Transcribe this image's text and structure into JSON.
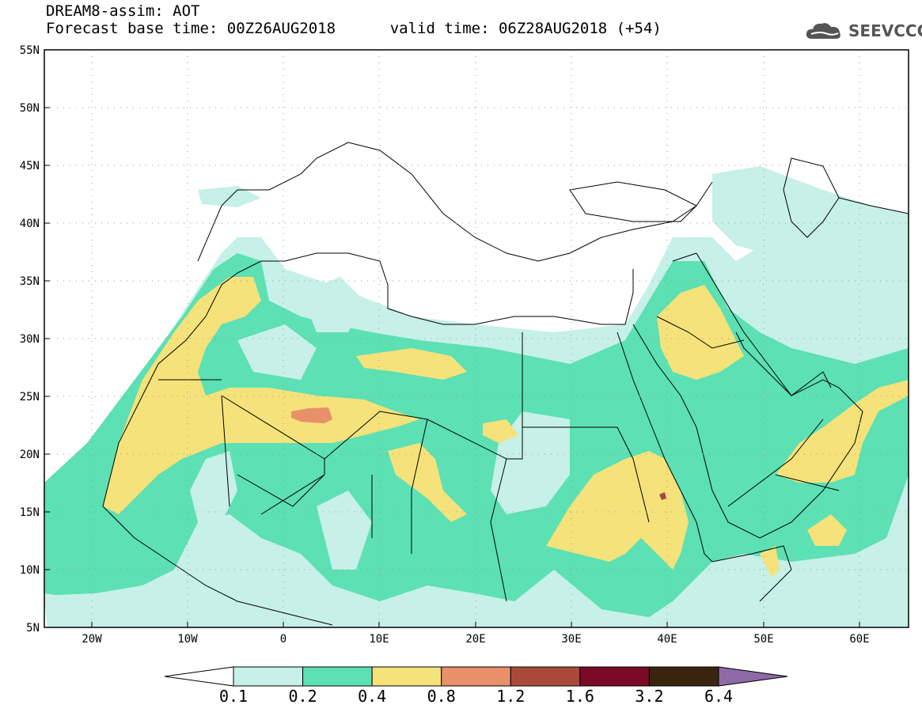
{
  "header": {
    "title_line1": "DREAM8-assim: AOT",
    "base_label": "Forecast base time: 00Z26AUG2018",
    "valid_label": "valid time: 06Z28AUG2018 (+54)"
  },
  "logo": {
    "text": "SEEVCCC",
    "icon": "cloud-icon"
  },
  "map": {
    "lon_range": [
      -25,
      65
    ],
    "lat_range": [
      5,
      55
    ],
    "lat_ticks": [
      "5N",
      "10N",
      "15N",
      "20N",
      "25N",
      "30N",
      "35N",
      "40N",
      "45N",
      "50N",
      "55N"
    ],
    "lon_ticks": [
      "20W",
      "10W",
      "0",
      "10E",
      "20E",
      "30E",
      "40E",
      "50E",
      "60E"
    ]
  },
  "colorbar": {
    "levels": [
      "0.1",
      "0.2",
      "0.4",
      "0.8",
      "1.2",
      "1.6",
      "3.2",
      "6.4"
    ],
    "colors": [
      "#ffffff",
      "#c6f0e8",
      "#5ce0b4",
      "#f5e27a",
      "#e8906a",
      "#a84a3a",
      "#7a0a25",
      "#3a2410",
      "#8e6aa8"
    ]
  }
}
